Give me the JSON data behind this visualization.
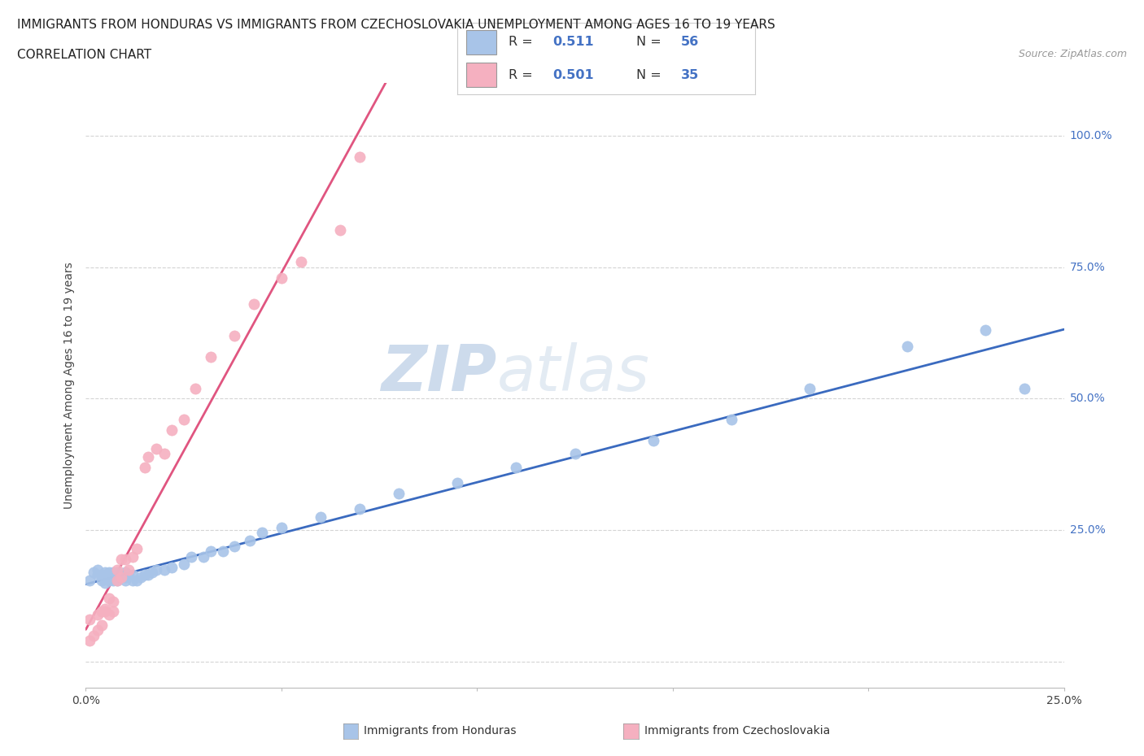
{
  "title_line1": "IMMIGRANTS FROM HONDURAS VS IMMIGRANTS FROM CZECHOSLOVAKIA UNEMPLOYMENT AMONG AGES 16 TO 19 YEARS",
  "title_line2": "CORRELATION CHART",
  "source_text": "Source: ZipAtlas.com",
  "ylabel": "Unemployment Among Ages 16 to 19 years",
  "xlim": [
    0.0,
    0.25
  ],
  "ylim": [
    -0.05,
    1.1
  ],
  "honduras_R": 0.511,
  "honduras_N": 56,
  "czecho_R": 0.501,
  "czecho_N": 35,
  "honduras_color": "#a8c4e8",
  "czecho_color": "#f5b0c0",
  "honduras_line_color": "#3a6abf",
  "czecho_line_color": "#e05580",
  "legend_label_1": "Immigrants from Honduras",
  "legend_label_2": "Immigrants from Czechoslovakia",
  "watermark_zip": "ZIP",
  "watermark_atlas": "atlas",
  "background_color": "#ffffff",
  "grid_color": "#d0d0d0",
  "title_fontsize": 11,
  "axis_label_fontsize": 10,
  "tick_fontsize": 10,
  "right_tick_color": "#4472c4",
  "honduras_x": [
    0.001,
    0.002,
    0.003,
    0.003,
    0.004,
    0.004,
    0.005,
    0.005,
    0.005,
    0.006,
    0.006,
    0.006,
    0.007,
    0.007,
    0.007,
    0.007,
    0.008,
    0.008,
    0.008,
    0.009,
    0.009,
    0.01,
    0.01,
    0.01,
    0.011,
    0.012,
    0.012,
    0.013,
    0.014,
    0.015,
    0.016,
    0.017,
    0.018,
    0.02,
    0.022,
    0.025,
    0.027,
    0.03,
    0.032,
    0.035,
    0.038,
    0.042,
    0.045,
    0.05,
    0.06,
    0.07,
    0.08,
    0.095,
    0.11,
    0.125,
    0.145,
    0.165,
    0.185,
    0.21,
    0.23,
    0.24
  ],
  "honduras_y": [
    0.155,
    0.17,
    0.165,
    0.175,
    0.155,
    0.165,
    0.15,
    0.16,
    0.17,
    0.155,
    0.16,
    0.17,
    0.155,
    0.16,
    0.165,
    0.17,
    0.155,
    0.16,
    0.17,
    0.16,
    0.165,
    0.155,
    0.16,
    0.17,
    0.165,
    0.155,
    0.165,
    0.155,
    0.16,
    0.165,
    0.165,
    0.17,
    0.175,
    0.175,
    0.18,
    0.185,
    0.2,
    0.2,
    0.21,
    0.21,
    0.22,
    0.23,
    0.245,
    0.255,
    0.275,
    0.29,
    0.32,
    0.34,
    0.37,
    0.395,
    0.42,
    0.46,
    0.52,
    0.6,
    0.63,
    0.52
  ],
  "czecho_x": [
    0.001,
    0.001,
    0.002,
    0.003,
    0.003,
    0.004,
    0.004,
    0.005,
    0.005,
    0.006,
    0.006,
    0.007,
    0.007,
    0.008,
    0.008,
    0.009,
    0.009,
    0.01,
    0.011,
    0.012,
    0.013,
    0.015,
    0.016,
    0.018,
    0.02,
    0.022,
    0.025,
    0.028,
    0.032,
    0.038,
    0.043,
    0.05,
    0.055,
    0.065,
    0.07
  ],
  "czecho_y": [
    0.04,
    0.08,
    0.05,
    0.06,
    0.09,
    0.07,
    0.095,
    0.095,
    0.1,
    0.09,
    0.12,
    0.115,
    0.095,
    0.175,
    0.155,
    0.195,
    0.16,
    0.195,
    0.175,
    0.2,
    0.215,
    0.37,
    0.39,
    0.405,
    0.395,
    0.44,
    0.46,
    0.52,
    0.58,
    0.62,
    0.68,
    0.73,
    0.76,
    0.82,
    0.96
  ]
}
